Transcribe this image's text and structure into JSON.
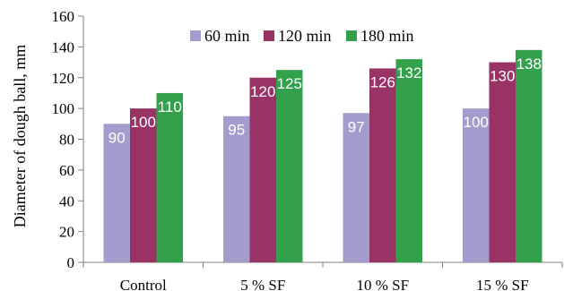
{
  "chart_data": {
    "type": "bar",
    "title": "",
    "xlabel": "",
    "ylabel": "Diameter of dough ball, mm",
    "categories": [
      "Control",
      "5 % SF",
      "10 % SF",
      "15 % SF"
    ],
    "ylim": [
      0,
      160
    ],
    "yticks": [
      0,
      20,
      40,
      60,
      80,
      100,
      120,
      140,
      160
    ],
    "grid": false,
    "legend_position": "top-center",
    "series": [
      {
        "name": "60 min",
        "color": "#a49ccc",
        "values": [
          90,
          95,
          97,
          100
        ]
      },
      {
        "name": "120 min",
        "color": "#993366",
        "values": [
          100,
          120,
          126,
          130
        ]
      },
      {
        "name": "180 min",
        "color": "#33a04c",
        "values": [
          110,
          125,
          132,
          138
        ]
      }
    ]
  }
}
